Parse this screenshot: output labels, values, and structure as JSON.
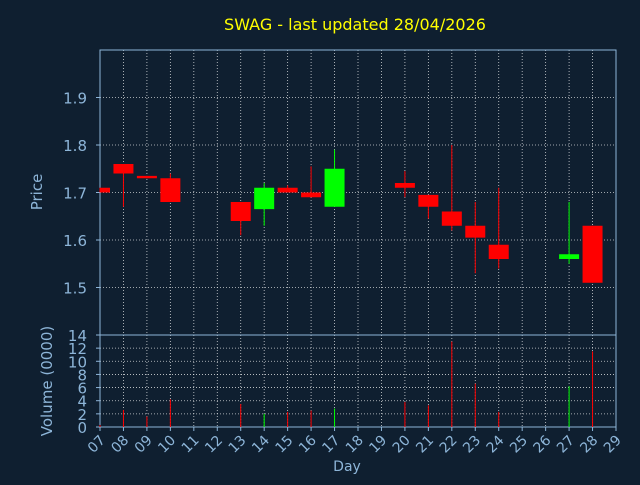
{
  "title": "SWAG - last updated 28/04/2026",
  "colors": {
    "background": "#0f1f30",
    "title": "#ffff00",
    "axis_text": "#8db5d8",
    "grid": "#ffffff",
    "up": "#00ff00",
    "down": "#ff0000"
  },
  "chart_data": [
    {
      "type": "candlestick",
      "ylabel": "Price",
      "ylim": [
        1.4,
        2.0
      ],
      "yticks": [
        "1.5",
        "1.6",
        "1.7",
        "1.8",
        "1.9"
      ],
      "grid": true,
      "candles": [
        {
          "day": 7,
          "open": 1.71,
          "high": 1.71,
          "low": 1.7,
          "close": 1.7
        },
        {
          "day": 8,
          "open": 1.76,
          "high": 1.76,
          "low": 1.67,
          "close": 1.74
        },
        {
          "day": 9,
          "open": 1.735,
          "high": 1.735,
          "low": 1.73,
          "close": 1.73
        },
        {
          "day": 10,
          "open": 1.73,
          "high": 1.74,
          "low": 1.68,
          "close": 1.68
        },
        {
          "day": 13,
          "open": 1.68,
          "high": 1.68,
          "low": 1.61,
          "close": 1.64
        },
        {
          "day": 14,
          "open": 1.665,
          "high": 1.72,
          "low": 1.63,
          "close": 1.71
        },
        {
          "day": 15,
          "open": 1.71,
          "high": 1.715,
          "low": 1.7,
          "close": 1.7
        },
        {
          "day": 16,
          "open": 1.7,
          "high": 1.755,
          "low": 1.69,
          "close": 1.69
        },
        {
          "day": 17,
          "open": 1.67,
          "high": 1.79,
          "low": 1.67,
          "close": 1.75
        },
        {
          "day": 20,
          "open": 1.72,
          "high": 1.745,
          "low": 1.69,
          "close": 1.71
        },
        {
          "day": 21,
          "open": 1.695,
          "high": 1.695,
          "low": 1.645,
          "close": 1.67
        },
        {
          "day": 22,
          "open": 1.66,
          "high": 1.8,
          "low": 1.62,
          "close": 1.63
        },
        {
          "day": 23,
          "open": 1.63,
          "high": 1.68,
          "low": 1.53,
          "close": 1.605
        },
        {
          "day": 24,
          "open": 1.59,
          "high": 1.71,
          "low": 1.54,
          "close": 1.56
        },
        {
          "day": 27,
          "open": 1.56,
          "high": 1.68,
          "low": 1.55,
          "close": 1.57
        },
        {
          "day": 28,
          "open": 1.63,
          "high": 1.63,
          "low": 1.51,
          "close": 1.51
        }
      ]
    },
    {
      "type": "bar",
      "ylabel": "Volume (0000)",
      "xlabel": "Day",
      "ylim": [
        0,
        14
      ],
      "yticks": [
        "0",
        "2",
        "4",
        "6",
        "8",
        "10",
        "12",
        "14"
      ],
      "xticks": [
        "07",
        "08",
        "09",
        "10",
        "11",
        "12",
        "13",
        "14",
        "15",
        "16",
        "17",
        "18",
        "19",
        "20",
        "21",
        "22",
        "23",
        "24",
        "25",
        "26",
        "27",
        "28",
        "29"
      ],
      "grid": true,
      "volumes": [
        {
          "day": 7,
          "value": 0.3
        },
        {
          "day": 8,
          "value": 2.6
        },
        {
          "day": 9,
          "value": 1.6
        },
        {
          "day": 10,
          "value": 4.2
        },
        {
          "day": 13,
          "value": 3.5
        },
        {
          "day": 14,
          "value": 2.0
        },
        {
          "day": 15,
          "value": 2.3
        },
        {
          "day": 16,
          "value": 2.5
        },
        {
          "day": 17,
          "value": 2.8
        },
        {
          "day": 20,
          "value": 3.8
        },
        {
          "day": 21,
          "value": 3.3
        },
        {
          "day": 22,
          "value": 13.0
        },
        {
          "day": 23,
          "value": 6.6
        },
        {
          "day": 24,
          "value": 2.3
        },
        {
          "day": 27,
          "value": 6.2
        },
        {
          "day": 28,
          "value": 11.5
        }
      ]
    }
  ]
}
